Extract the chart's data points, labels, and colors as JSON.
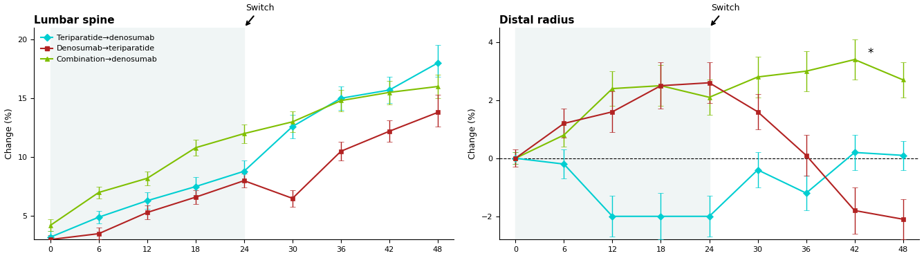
{
  "lumbar": {
    "title": "Lumbar spine",
    "ylabel": "Change (%)",
    "ylim": [
      3,
      21
    ],
    "yticks": [
      5,
      10,
      15,
      20
    ],
    "switch_x": 24,
    "shade_xlim": [
      0,
      24
    ],
    "xticklabels": [
      "0",
      "6",
      "12",
      "18",
      "24",
      "30",
      "36",
      "42",
      "48"
    ],
    "xticks": [
      0,
      6,
      12,
      18,
      24,
      30,
      36,
      42,
      48
    ],
    "series": {
      "teri_deno": {
        "label": "Teriparatide→denosumab",
        "color": "#00CED1",
        "marker": "D",
        "x": [
          0,
          6,
          12,
          18,
          24,
          30,
          36,
          42,
          48
        ],
        "y": [
          3.2,
          4.9,
          6.3,
          7.5,
          8.8,
          12.6,
          15.0,
          15.7,
          18.0
        ],
        "yerr_lo": [
          0.5,
          0.5,
          0.7,
          0.8,
          0.9,
          1.0,
          1.0,
          1.1,
          1.2
        ],
        "yerr_hi": [
          0.5,
          0.5,
          0.7,
          0.8,
          0.9,
          1.0,
          1.0,
          1.1,
          1.5
        ]
      },
      "deno_teri": {
        "label": "Denosumab→teriparatide",
        "color": "#B22222",
        "marker": "s",
        "x": [
          0,
          6,
          12,
          18,
          24,
          30,
          36,
          42,
          48
        ],
        "y": [
          3.0,
          3.5,
          5.3,
          6.6,
          8.0,
          6.5,
          10.5,
          12.2,
          13.8
        ],
        "yerr_lo": [
          0.4,
          0.5,
          0.6,
          0.6,
          0.6,
          0.7,
          0.8,
          0.9,
          1.2
        ],
        "yerr_hi": [
          0.4,
          0.5,
          0.6,
          0.6,
          0.6,
          0.7,
          0.8,
          0.9,
          1.5
        ]
      },
      "combo_deno": {
        "label": "Combination→denosumab",
        "color": "#7FBF00",
        "marker": "^",
        "x": [
          0,
          6,
          12,
          18,
          24,
          30,
          36,
          42,
          48
        ],
        "y": [
          4.2,
          7.0,
          8.2,
          10.8,
          12.0,
          13.0,
          14.8,
          15.5,
          16.0
        ],
        "yerr_lo": [
          0.5,
          0.5,
          0.6,
          0.7,
          0.8,
          0.9,
          0.9,
          1.0,
          1.0
        ],
        "yerr_hi": [
          0.5,
          0.5,
          0.6,
          0.7,
          0.8,
          0.9,
          0.9,
          1.0,
          1.0
        ]
      }
    }
  },
  "distal": {
    "title": "Distal radius",
    "ylabel": "Change (%)",
    "ylim": [
      -2.8,
      4.5
    ],
    "yticks": [
      -2,
      0,
      2,
      4
    ],
    "switch_x": 24,
    "shade_xlim": [
      0,
      24
    ],
    "xticklabels": [
      "0",
      "6",
      "12",
      "18",
      "24",
      "30",
      "36",
      "42",
      "48"
    ],
    "xticks": [
      0,
      6,
      12,
      18,
      24,
      30,
      36,
      42,
      48
    ],
    "series": {
      "teri_deno": {
        "label": "Teriparatide→denosumab",
        "color": "#00CED1",
        "marker": "D",
        "x": [
          0,
          6,
          12,
          18,
          24,
          30,
          36,
          42,
          48
        ],
        "y": [
          0.0,
          -0.2,
          -2.0,
          -2.0,
          -2.0,
          -0.4,
          -1.2,
          0.2,
          0.1
        ],
        "yerr_lo": [
          0.2,
          0.5,
          0.7,
          0.8,
          0.7,
          0.6,
          0.6,
          0.6,
          0.5
        ],
        "yerr_hi": [
          0.2,
          0.5,
          0.7,
          0.8,
          0.7,
          0.6,
          0.6,
          0.6,
          0.5
        ]
      },
      "deno_teri": {
        "label": "Denosumab→teriparatide",
        "color": "#B22222",
        "marker": "s",
        "x": [
          0,
          6,
          12,
          18,
          24,
          30,
          36,
          42,
          48
        ],
        "y": [
          0.0,
          1.2,
          1.6,
          2.5,
          2.6,
          1.6,
          0.1,
          -1.8,
          -2.1
        ],
        "yerr_lo": [
          0.3,
          0.5,
          0.7,
          0.8,
          0.7,
          0.6,
          0.7,
          0.8,
          0.7
        ],
        "yerr_hi": [
          0.3,
          0.5,
          0.7,
          0.8,
          0.7,
          0.6,
          0.7,
          0.8,
          0.7
        ]
      },
      "combo_deno": {
        "label": "Combination→denosumab",
        "color": "#7FBF00",
        "marker": "^",
        "x": [
          0,
          6,
          12,
          18,
          24,
          30,
          36,
          42,
          48
        ],
        "y": [
          0.0,
          0.8,
          2.4,
          2.5,
          2.1,
          2.8,
          3.0,
          3.4,
          2.7
        ],
        "yerr_lo": [
          0.2,
          0.4,
          0.6,
          0.7,
          0.6,
          0.7,
          0.7,
          0.7,
          0.6
        ],
        "yerr_hi": [
          0.2,
          0.4,
          0.6,
          0.7,
          0.6,
          0.7,
          0.7,
          0.7,
          0.6
        ]
      }
    }
  },
  "background_color": "#f0f5f5",
  "outer_bg": "#ffffff",
  "switch_label": "Switch",
  "asterisk_x": 44,
  "asterisk_y": 3.4
}
